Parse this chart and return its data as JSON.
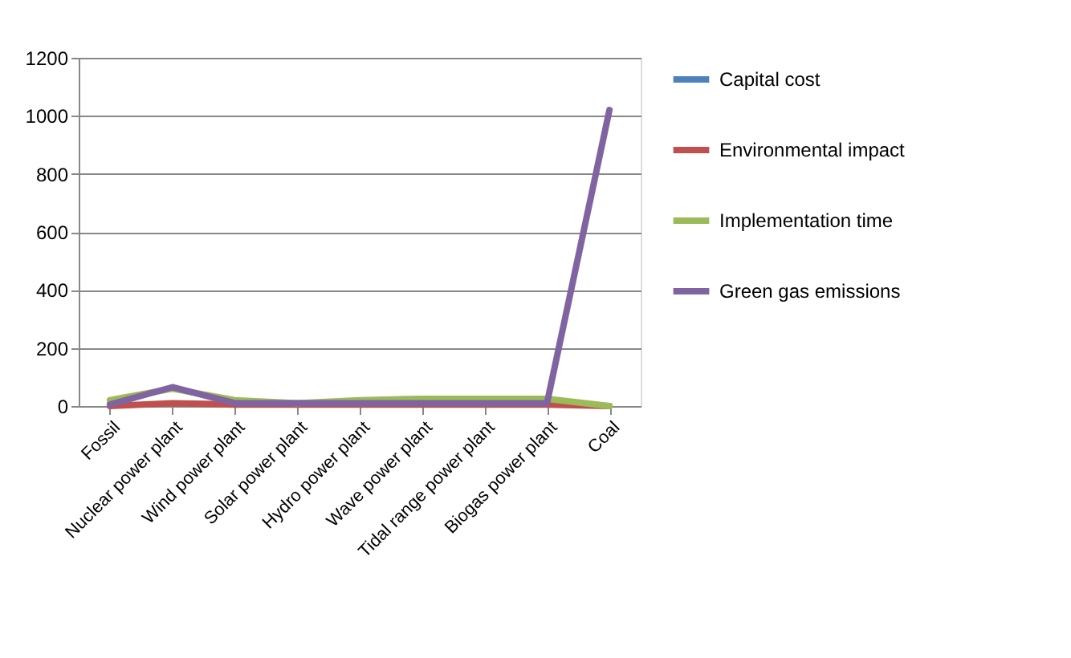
{
  "chart_data": {
    "type": "line",
    "categories": [
      "Fossil",
      "Nuclear power plant",
      "Wind power plant",
      "Solar power plant",
      "Hydro power plant",
      "Wave power plant",
      "Tidal range power plant",
      "Biogas power plant",
      "Coal"
    ],
    "series": [
      {
        "name": "Capital cost",
        "color": "#4f81bd",
        "values": [
          null,
          null,
          null,
          null,
          null,
          null,
          null,
          null,
          null
        ]
      },
      {
        "name": "Environmental impact",
        "color": "#c0504d",
        "values": [
          0,
          10,
          5,
          5,
          5,
          5,
          5,
          5,
          0
        ]
      },
      {
        "name": "Implementation time",
        "color": "#9bbb59",
        "values": [
          20,
          60,
          20,
          10,
          20,
          25,
          25,
          25,
          0
        ]
      },
      {
        "name": "Green gas emissions",
        "color": "#8064a2",
        "values": [
          5,
          65,
          10,
          10,
          10,
          10,
          10,
          10,
          1020
        ]
      }
    ],
    "ylim": [
      0,
      1200
    ],
    "yticks": [
      0,
      200,
      400,
      600,
      800,
      1000,
      1200
    ],
    "grid": "y",
    "legend": "right"
  }
}
